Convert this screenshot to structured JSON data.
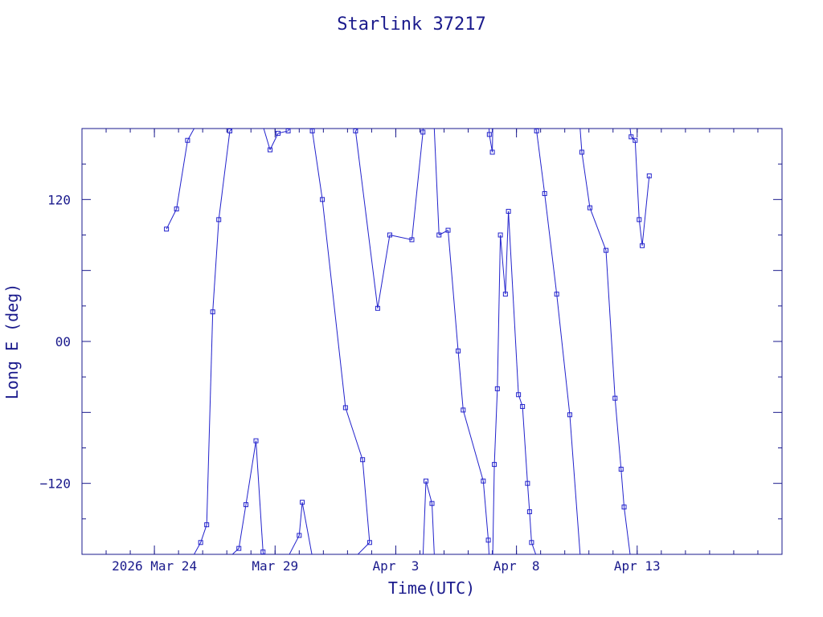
{
  "chart_data": {
    "type": "line",
    "title": "Starlink 37217",
    "xlabel": "Time(UTC)",
    "ylabel": "Long E (deg)",
    "x_range": [
      "2026-03-21",
      "2026-04-19"
    ],
    "ylim": [
      -180,
      180
    ],
    "x_ticks": [
      {
        "date": "2026-03-24",
        "label": "2026 Mar 24"
      },
      {
        "date": "2026-03-29",
        "label": "Mar 29"
      },
      {
        "date": "2026-04-03",
        "label": "Apr  3"
      },
      {
        "date": "2026-04-08",
        "label": "Apr  8"
      },
      {
        "date": "2026-04-13",
        "label": "Apr 13"
      }
    ],
    "y_ticks": [
      {
        "value": 120,
        "label": "120"
      },
      {
        "value": 0,
        "label": "00"
      },
      {
        "value": -120,
        "label": "−120"
      }
    ],
    "grid": false,
    "colors": {
      "line": "#2222cc",
      "axis": "#1a1a8c",
      "text": "#1a1a8c"
    },
    "series": [
      {
        "values": [
          [
            "2026-03-24T12:00",
            95
          ],
          [
            "2026-03-24T22:00",
            112
          ],
          [
            "2026-03-25T09:00",
            170
          ],
          [
            "2026-03-25T22:00",
            -170
          ],
          [
            "2026-03-26T04:00",
            -155
          ],
          [
            "2026-03-26T10:00",
            25
          ],
          [
            "2026-03-26T16:00",
            103
          ],
          [
            "2026-03-27T03:00",
            178
          ],
          [
            "2026-03-27T12:00",
            -175
          ],
          [
            "2026-03-27T19:00",
            -138
          ],
          [
            "2026-03-28T05:00",
            -84
          ],
          [
            "2026-03-28T12:00",
            -178
          ],
          [
            "2026-03-28T19:00",
            162
          ],
          [
            "2026-03-29T03:00",
            176
          ],
          [
            "2026-03-29T13:00",
            178
          ],
          [
            "2026-03-30T00:00",
            -164
          ],
          [
            "2026-03-30T03:00",
            -136
          ],
          [
            "2026-03-30T13:00",
            178
          ],
          [
            "2026-03-30T23:00",
            120
          ],
          [
            "2026-03-31T22:00",
            -56
          ],
          [
            "2026-04-01T15:00",
            -100
          ],
          [
            "2026-04-01T22:00",
            -170
          ],
          [
            "2026-04-01T08:00",
            178
          ],
          [
            "2026-04-02T06:00",
            28
          ],
          [
            "2026-04-02T18:00",
            90
          ],
          [
            "2026-04-03T16:00",
            86
          ],
          [
            "2026-04-04T03:00",
            177
          ],
          [
            "2026-04-04T06:00",
            -118
          ],
          [
            "2026-04-04T12:00",
            -137
          ],
          [
            "2026-04-04T19:00",
            90
          ],
          [
            "2026-04-05T04:00",
            94
          ],
          [
            "2026-04-05T14:00",
            -8
          ],
          [
            "2026-04-05T19:00",
            -58
          ],
          [
            "2026-04-06T15:00",
            -118
          ],
          [
            "2026-04-06T20:00",
            -168
          ],
          [
            "2026-04-06T21:00",
            175
          ],
          [
            "2026-04-07T00:00",
            160
          ],
          [
            "2026-04-07T02:00",
            -104
          ],
          [
            "2026-04-07T05:00",
            -40
          ],
          [
            "2026-04-07T08:00",
            90
          ],
          [
            "2026-04-07T13:00",
            40
          ],
          [
            "2026-04-07T16:00",
            110
          ],
          [
            "2026-04-08T02:00",
            -45
          ],
          [
            "2026-04-08T06:00",
            -55
          ],
          [
            "2026-04-08T11:00",
            -120
          ],
          [
            "2026-04-08T13:00",
            -144
          ],
          [
            "2026-04-08T15:00",
            -170
          ],
          [
            "2026-04-08T20:00",
            178
          ],
          [
            "2026-04-09T04:00",
            125
          ],
          [
            "2026-04-09T16:00",
            40
          ],
          [
            "2026-04-10T05:00",
            -62
          ],
          [
            "2026-04-10T17:00",
            160
          ],
          [
            "2026-04-11T01:00",
            113
          ],
          [
            "2026-04-11T17:00",
            77
          ],
          [
            "2026-04-12T02:00",
            -48
          ],
          [
            "2026-04-12T08:00",
            -108
          ],
          [
            "2026-04-12T11:00",
            -140
          ],
          [
            "2026-04-12T18:00",
            173
          ],
          [
            "2026-04-12T22:00",
            170
          ],
          [
            "2026-04-13T02:00",
            103
          ],
          [
            "2026-04-13T05:00",
            81
          ],
          [
            "2026-04-13T12:00",
            140
          ]
        ]
      }
    ]
  }
}
